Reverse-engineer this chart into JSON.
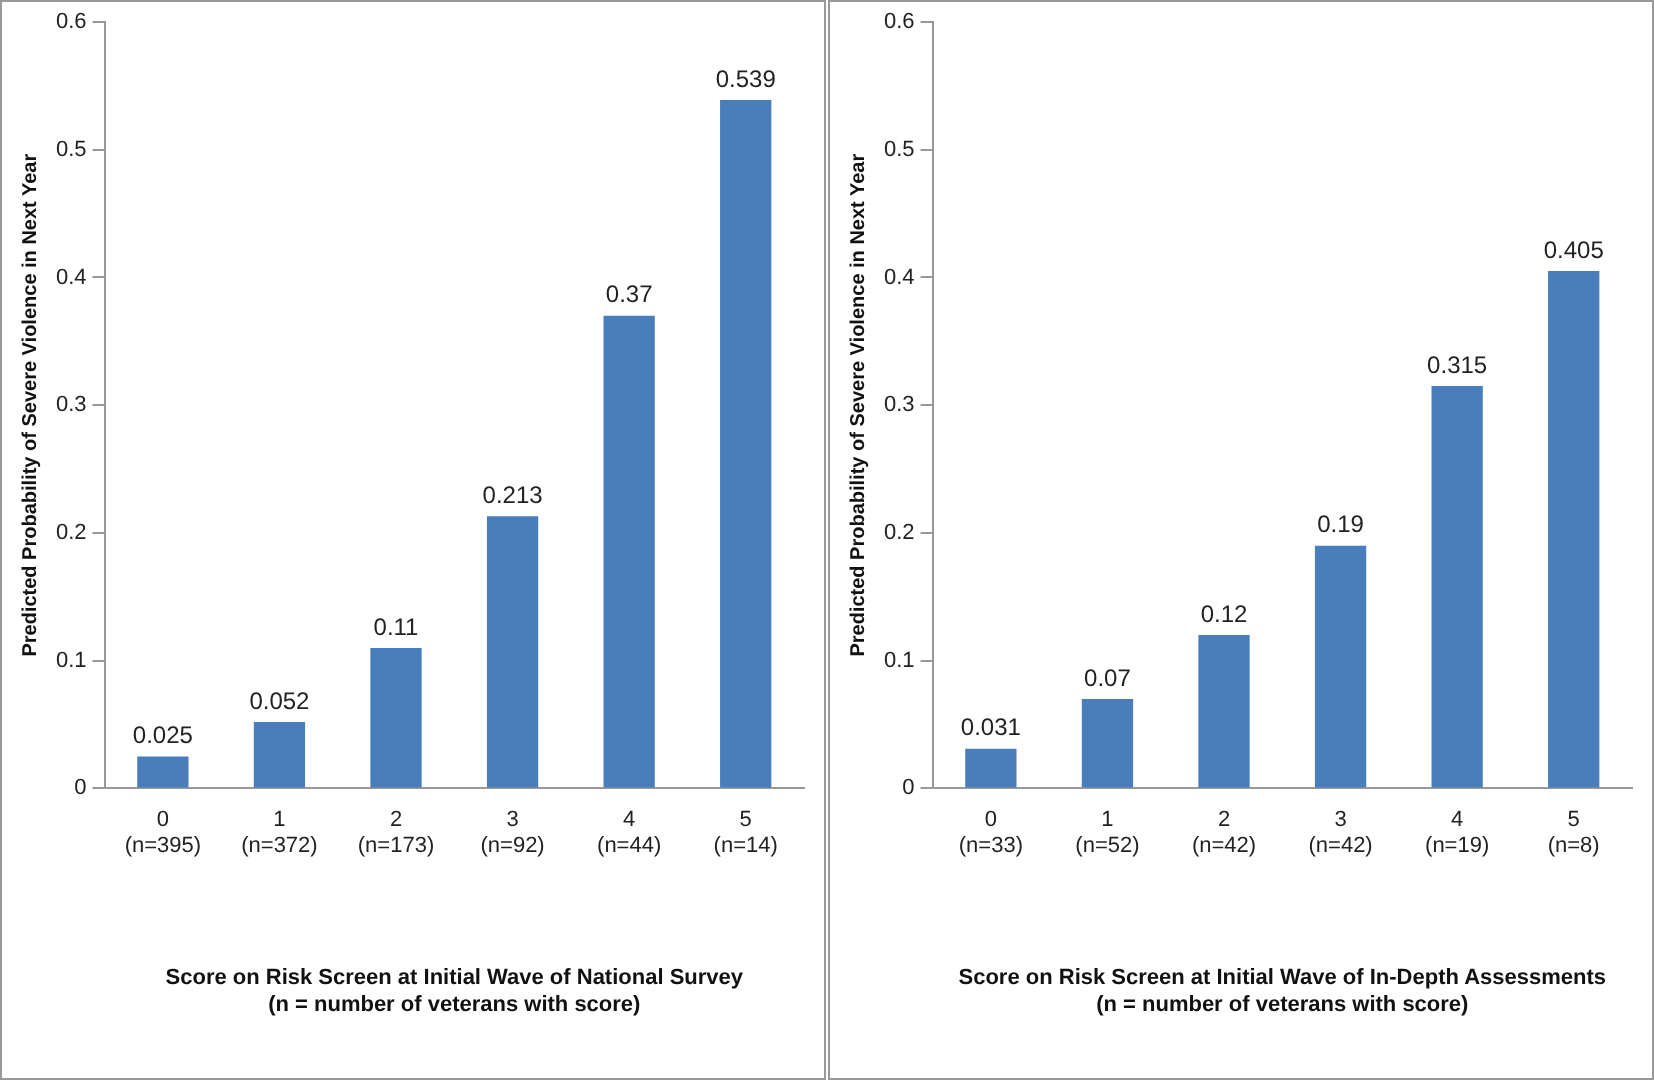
{
  "chart_data": [
    {
      "type": "bar",
      "xlabel": "Score on Risk Screen at Initial Wave of National Survey\n(n = number of veterans with score)",
      "ylabel": "Predicted Probability of Severe Violence in Next Year",
      "categories": [
        "0\n(n=395)",
        "1\n(n=372)",
        "2\n(n=173)",
        "3\n(n=92)",
        "4\n(n=44)",
        "5\n(n=14)"
      ],
      "values": [
        0.025,
        0.052,
        0.11,
        0.213,
        0.37,
        0.539
      ],
      "color": "#4a7ebb",
      "ylim": [
        0,
        0.6
      ],
      "yticks": [
        0,
        0.1,
        0.2,
        0.3,
        0.4,
        0.5,
        0.6
      ],
      "grid": false,
      "legend": false,
      "data_labels": true
    },
    {
      "type": "bar",
      "xlabel": "Score on Risk Screen at Initial Wave of In-Depth Assessments\n(n = number of veterans with score)",
      "ylabel": "Predicted Probability of Severe Violence in Next Year",
      "categories": [
        "0\n(n=33)",
        "1\n(n=52)",
        "2\n(n=42)",
        "3\n(n=42)",
        "4\n(n=19)",
        "5\n(n=8)"
      ],
      "values": [
        0.031,
        0.07,
        0.12,
        0.19,
        0.315,
        0.405
      ],
      "color": "#4a7ebb",
      "ylim": [
        0,
        0.6
      ],
      "yticks": [
        0,
        0.1,
        0.2,
        0.3,
        0.4,
        0.5,
        0.6
      ],
      "grid": false,
      "legend": false,
      "data_labels": true
    }
  ]
}
